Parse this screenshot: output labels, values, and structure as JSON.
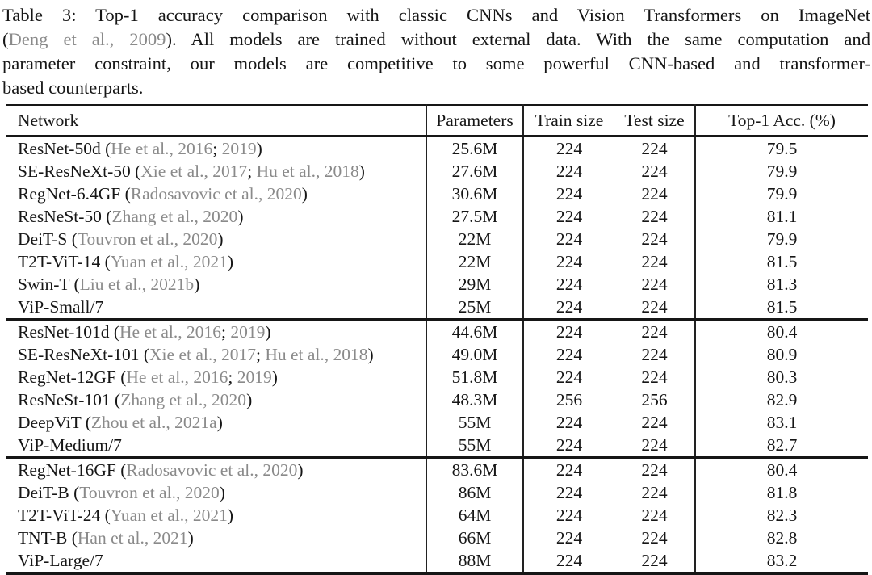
{
  "caption": {
    "lines": [
      {
        "justify": true,
        "segments": [
          {
            "t": "Table 3: Top-1 accuracy comparison with classic CNNs and Vision Transformers on ImageNet",
            "c": "normal"
          }
        ]
      },
      {
        "justify": true,
        "segments": [
          {
            "t": "(",
            "c": "normal"
          },
          {
            "t": "Deng et al., 2009",
            "c": "cite"
          },
          {
            "t": "). All models are trained without external data. With the same computation and",
            "c": "normal"
          }
        ]
      },
      {
        "justify": true,
        "segments": [
          {
            "t": "parameter constraint, our models are competitive to some powerful CNN-based and transformer-",
            "c": "normal"
          }
        ]
      },
      {
        "justify": false,
        "segments": [
          {
            "t": "based counterparts.",
            "c": "normal"
          }
        ]
      }
    ]
  },
  "table": {
    "columns": [
      "Network",
      "Parameters",
      "Train size",
      "Test size",
      "Top-1 Acc. (%)"
    ],
    "punct": {
      "open": " (",
      "sep": "; ",
      "close": ")"
    },
    "groups": [
      {
        "rows": [
          {
            "name": "ResNet-50d",
            "cites": [
              "He et al., 2016",
              "2019"
            ],
            "params": "25.6M",
            "train": "224",
            "test": "224",
            "acc": "79.5"
          },
          {
            "name": "SE-ResNeXt-50",
            "cites": [
              "Xie et al., 2017",
              "Hu et al., 2018"
            ],
            "params": "27.6M",
            "train": "224",
            "test": "224",
            "acc": "79.9"
          },
          {
            "name": "RegNet-6.4GF",
            "cites": [
              "Radosavovic et al., 2020"
            ],
            "params": "30.6M",
            "train": "224",
            "test": "224",
            "acc": "79.9"
          },
          {
            "name": "ResNeSt-50",
            "cites": [
              "Zhang et al., 2020"
            ],
            "params": "27.5M",
            "train": "224",
            "test": "224",
            "acc": "81.1"
          },
          {
            "name": "DeiT-S",
            "cites": [
              "Touvron et al., 2020"
            ],
            "params": "22M",
            "train": "224",
            "test": "224",
            "acc": "79.9"
          },
          {
            "name": "T2T-ViT-14",
            "cites": [
              "Yuan et al., 2021"
            ],
            "params": "22M",
            "train": "224",
            "test": "224",
            "acc": "81.5"
          },
          {
            "name": "Swin-T",
            "cites": [
              "Liu et al., 2021b"
            ],
            "params": "29M",
            "train": "224",
            "test": "224",
            "acc": "81.3"
          },
          {
            "name": "ViP-Small/7",
            "cites": [],
            "params": "25M",
            "train": "224",
            "test": "224",
            "acc": "81.5"
          }
        ]
      },
      {
        "rows": [
          {
            "name": "ResNet-101d",
            "cites": [
              "He et al., 2016",
              "2019"
            ],
            "params": "44.6M",
            "train": "224",
            "test": "224",
            "acc": "80.4"
          },
          {
            "name": "SE-ResNeXt-101",
            "cites": [
              "Xie et al., 2017",
              "Hu et al., 2018"
            ],
            "params": "49.0M",
            "train": "224",
            "test": "224",
            "acc": "80.9"
          },
          {
            "name": "RegNet-12GF",
            "cites": [
              "He et al., 2016",
              "2019"
            ],
            "params": "51.8M",
            "train": "224",
            "test": "224",
            "acc": "80.3"
          },
          {
            "name": "ResNeSt-101",
            "cites": [
              "Zhang et al., 2020"
            ],
            "params": "48.3M",
            "train": "256",
            "test": "256",
            "acc": "82.9"
          },
          {
            "name": "DeepViT",
            "cites": [
              "Zhou et al., 2021a"
            ],
            "params": "55M",
            "train": "224",
            "test": "224",
            "acc": "83.1"
          },
          {
            "name": "ViP-Medium/7",
            "cites": [],
            "params": "55M",
            "train": "224",
            "test": "224",
            "acc": "82.7"
          }
        ]
      },
      {
        "rows": [
          {
            "name": "RegNet-16GF",
            "cites": [
              "Radosavovic et al., 2020"
            ],
            "params": "83.6M",
            "train": "224",
            "test": "224",
            "acc": "80.4"
          },
          {
            "name": "DeiT-B",
            "cites": [
              "Touvron et al., 2020"
            ],
            "params": "86M",
            "train": "224",
            "test": "224",
            "acc": "81.8"
          },
          {
            "name": "T2T-ViT-24",
            "cites": [
              "Yuan et al., 2021"
            ],
            "params": "64M",
            "train": "224",
            "test": "224",
            "acc": "82.3"
          },
          {
            "name": "TNT-B",
            "cites": [
              "Han et al., 2021"
            ],
            "params": "66M",
            "train": "224",
            "test": "224",
            "acc": "82.8"
          },
          {
            "name": "ViP-Large/7",
            "cites": [],
            "params": "88M",
            "train": "224",
            "test": "224",
            "acc": "83.2"
          }
        ]
      }
    ]
  },
  "colors": {
    "text": "#161616",
    "cite": "#8a8a8a",
    "rule": "#161616",
    "background": "#ffffff"
  }
}
